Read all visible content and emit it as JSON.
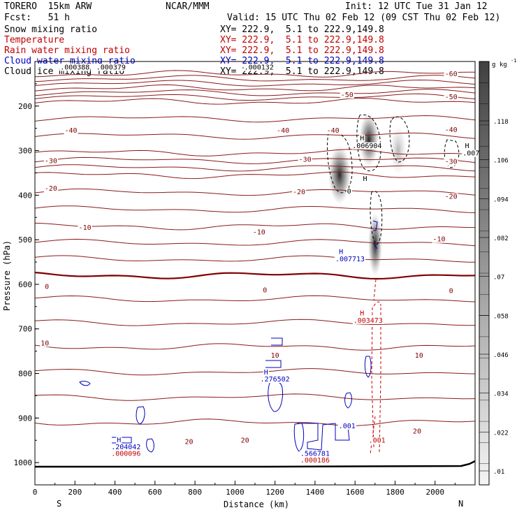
{
  "header": {
    "model": "TORERO  15km ARW",
    "org": "NCAR/MMM",
    "init": "Init: 12 UTC Tue 31 Jan 12",
    "fcst": "Fcst:   51 h",
    "valid": "Valid: 15 UTC Thu 02 Feb 12 (09 CST Thu 02 Feb 12)"
  },
  "legend": [
    {
      "name": "Snow mixing ratio",
      "xy": "XY= 222.9,  5.1 to 222.9,149.8",
      "color": "#000000"
    },
    {
      "name": "Temperature",
      "xy": "XY= 222.9,  5.1 to 222.9,149.8",
      "color": "#c00000"
    },
    {
      "name": "Rain water mixing ratio",
      "xy": "XY= 222.9,  5.1 to 222.9,149.8",
      "color": "#c00000"
    },
    {
      "name": "Cloud water mixing ratio",
      "xy": "XY= 222.9,  5.1 to 222.9,149.8",
      "color": "#0000c0"
    },
    {
      "name": "Cloud ice mixing ratio",
      "xy": "XY= 222.9,  5.1 to 222.9,149.8",
      "color": "#000000"
    }
  ],
  "chart_data": {
    "type": "cross-section contour",
    "xlabel": "Distance (km)",
    "ylabel": "Pressure (hPa)",
    "x_range": [
      0,
      2200
    ],
    "y_range": [
      1050,
      100
    ],
    "x_ticks": [
      "0",
      "200",
      "400",
      "600",
      "800",
      "1000",
      "1200",
      "1400",
      "1600",
      "1800",
      "2000"
    ],
    "y_ticks": [
      "200",
      "300",
      "400",
      "500",
      "600",
      "700",
      "800",
      "900",
      "1000"
    ],
    "x_ends": {
      "left": "S",
      "right": "N"
    },
    "colorbar": {
      "unit": "g kg",
      "unit_exp": "-1",
      "ticks": [
        ".118",
        ".106",
        ".094",
        ".082",
        ".07",
        ".058",
        ".046",
        ".034",
        ".022",
        ".01"
      ]
    },
    "temperature_contours": [
      {
        "label": "-60",
        "p": 128
      },
      {
        "label": "-50",
        "p": 160
      },
      {
        "label": "-40",
        "p": 190
      },
      {
        "label": "-30",
        "p": 305
      },
      {
        "label": "-20",
        "p": 355
      },
      {
        "label": "-10",
        "p": 470
      },
      {
        "label": "0",
        "p": 580
      },
      {
        "label": "10",
        "p": 740
      },
      {
        "label": "20",
        "p": 910
      }
    ],
    "contour_labels": [
      {
        "text": "-60",
        "x": 2080,
        "p": 133,
        "color": "#800000"
      },
      {
        "text": "-50",
        "x": 1560,
        "p": 180,
        "color": "#800000"
      },
      {
        "text": "-50",
        "x": 2080,
        "p": 185,
        "color": "#800000"
      },
      {
        "text": "-40",
        "x": 180,
        "p": 260,
        "color": "#800000"
      },
      {
        "text": "-40",
        "x": 1240,
        "p": 260,
        "color": "#800000"
      },
      {
        "text": "-40",
        "x": 1490,
        "p": 260,
        "color": "#800000"
      },
      {
        "text": "-40",
        "x": 2080,
        "p": 258,
        "color": "#800000"
      },
      {
        "text": "-30",
        "x": 80,
        "p": 328,
        "color": "#800000"
      },
      {
        "text": "-30",
        "x": 1350,
        "p": 325,
        "color": "#800000"
      },
      {
        "text": "-30",
        "x": 2080,
        "p": 330,
        "color": "#800000"
      },
      {
        "text": "-20",
        "x": 80,
        "p": 390,
        "color": "#800000"
      },
      {
        "text": "-20",
        "x": 1320,
        "p": 398,
        "color": "#800000"
      },
      {
        "text": "-20",
        "x": 2080,
        "p": 408,
        "color": "#800000"
      },
      {
        "text": "-10",
        "x": 250,
        "p": 478,
        "color": "#800000"
      },
      {
        "text": "-10",
        "x": 1120,
        "p": 488,
        "color": "#800000"
      },
      {
        "text": "-10",
        "x": 2020,
        "p": 504,
        "color": "#800000"
      },
      {
        "text": "0",
        "x": 60,
        "p": 610,
        "color": "#800000"
      },
      {
        "text": "0",
        "x": 1150,
        "p": 618,
        "color": "#800000"
      },
      {
        "text": "0",
        "x": 2080,
        "p": 620,
        "color": "#800000"
      },
      {
        "text": "10",
        "x": 50,
        "p": 737,
        "color": "#800000"
      },
      {
        "text": "10",
        "x": 1200,
        "p": 765,
        "color": "#800000"
      },
      {
        "text": "10",
        "x": 1920,
        "p": 765,
        "color": "#800000"
      },
      {
        "text": "20",
        "x": 770,
        "p": 958,
        "color": "#800000"
      },
      {
        "text": "20",
        "x": 1050,
        "p": 955,
        "color": "#800000"
      },
      {
        "text": "20",
        "x": 1910,
        "p": 935,
        "color": "#800000"
      },
      {
        "text": "0",
        "x": 1570,
        "p": 396,
        "color": "#000000"
      }
    ],
    "extrema_labels": [
      {
        "text": "H",
        "x": 1635,
        "p": 277,
        "color": "#000000"
      },
      {
        "text": ".006904",
        "x": 1660,
        "p": 294,
        "color": "#000000"
      },
      {
        "text": "H",
        "x": 2160,
        "p": 294,
        "color": "#000000"
      },
      {
        "text": ".007",
        "x": 2180,
        "p": 311,
        "color": "#000000"
      },
      {
        "text": "H",
        "x": 1650,
        "p": 368,
        "color": "#000000"
      },
      {
        "text": "H",
        "x": 1530,
        "p": 532,
        "color": "#0000c0"
      },
      {
        "text": ".007713",
        "x": 1575,
        "p": 548,
        "color": "#0000c0"
      },
      {
        "text": "H",
        "x": 1635,
        "p": 670,
        "color": "#c00000"
      },
      {
        "text": ".003473",
        "x": 1665,
        "p": 686,
        "color": "#c00000"
      },
      {
        "text": "H",
        "x": 1155,
        "p": 802,
        "color": "#0000c0"
      },
      {
        "text": ".276502",
        "x": 1200,
        "p": 818,
        "color": "#0000c0"
      },
      {
        "text": "H",
        "x": 420,
        "p": 954,
        "color": "#0000c0"
      },
      {
        "text": ".204042",
        "x": 455,
        "p": 970,
        "color": "#0000c0"
      },
      {
        "text": ".000096",
        "x": 455,
        "p": 985,
        "color": "#c00000"
      },
      {
        "text": ".566781",
        "x": 1400,
        "p": 985,
        "color": "#0000c0"
      },
      {
        "text": ".000186",
        "x": 1400,
        "p": 1000,
        "color": "#c00000"
      },
      {
        "text": ".001",
        "x": 1560,
        "p": 923,
        "color": "#0000c0"
      },
      {
        "text": ".001",
        "x": 1710,
        "p": 955,
        "color": "#c00000"
      },
      {
        "text": ".000388",
        "x": 200,
        "p": 118,
        "color": "#000000"
      },
      {
        "text": ".000379",
        "x": 380,
        "p": 118,
        "color": "#000000"
      },
      {
        "text": ".000132",
        "x": 1120,
        "p": 118,
        "color": "#000000"
      }
    ]
  }
}
